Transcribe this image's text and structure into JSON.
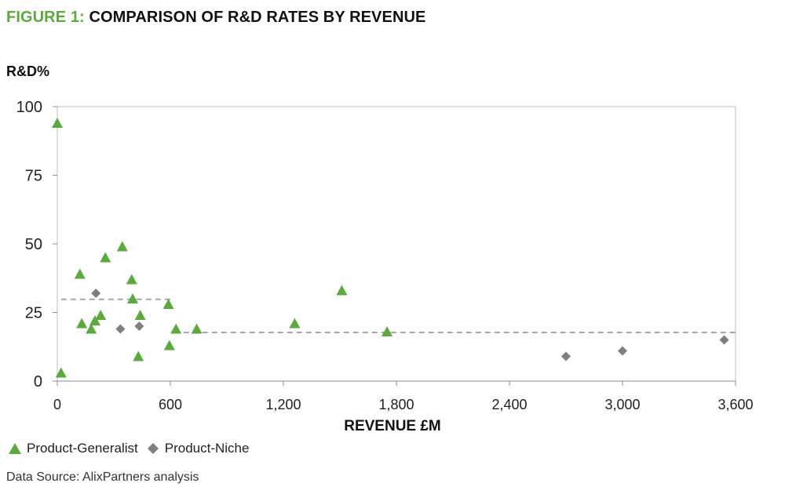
{
  "header": {
    "figure_label": "FIGURE 1:",
    "title": "COMPARISON OF R&D RATES BY REVENUE"
  },
  "footer": {
    "source": "Data Source: AlixPartners analysis"
  },
  "colors": {
    "generalist": "#5aab3c",
    "niche": "#7f7f7f",
    "average_line": "#a6a6a6",
    "axis": "#bfbfbf"
  },
  "chart_data": {
    "type": "scatter",
    "title": "COMPARISON OF R&D RATES BY REVENUE",
    "xlabel": "REVENUE £M",
    "ylabel": "R&D%",
    "xlim": [
      0,
      3600
    ],
    "ylim": [
      0,
      100
    ],
    "x_ticks": [
      0,
      600,
      1200,
      1800,
      2400,
      3000,
      3600
    ],
    "x_tick_labels": [
      "0",
      "600",
      "1,200",
      "1,800",
      "2,400",
      "3,000",
      "3,600"
    ],
    "y_ticks": [
      0,
      25,
      50,
      75,
      100
    ],
    "y_tick_labels": [
      "0",
      "25",
      "50",
      "75",
      "100"
    ],
    "grid": false,
    "legend_position": "bottom-left",
    "series": [
      {
        "name": "Product-Generalist",
        "marker": "triangle",
        "points": [
          {
            "x": 0,
            "y": 94
          },
          {
            "x": 20,
            "y": 3
          },
          {
            "x": 120,
            "y": 39
          },
          {
            "x": 130,
            "y": 21
          },
          {
            "x": 180,
            "y": 19
          },
          {
            "x": 200,
            "y": 22
          },
          {
            "x": 230,
            "y": 24
          },
          {
            "x": 255,
            "y": 45
          },
          {
            "x": 345,
            "y": 49
          },
          {
            "x": 395,
            "y": 37
          },
          {
            "x": 400,
            "y": 30
          },
          {
            "x": 430,
            "y": 9
          },
          {
            "x": 440,
            "y": 24
          },
          {
            "x": 590,
            "y": 28
          },
          {
            "x": 595,
            "y": 13
          },
          {
            "x": 630,
            "y": 19
          },
          {
            "x": 740,
            "y": 19
          },
          {
            "x": 1260,
            "y": 21
          },
          {
            "x": 1510,
            "y": 33
          },
          {
            "x": 1750,
            "y": 18
          }
        ]
      },
      {
        "name": "Product-Niche",
        "marker": "diamond",
        "points": [
          {
            "x": 205,
            "y": 32
          },
          {
            "x": 335,
            "y": 19
          },
          {
            "x": 435,
            "y": 20
          },
          {
            "x": 2700,
            "y": 9
          },
          {
            "x": 3000,
            "y": 11
          },
          {
            "x": 3540,
            "y": 15
          }
        ]
      }
    ],
    "reference_lines": [
      {
        "style": "dashed",
        "x_start": 20,
        "x_end": 620,
        "y": 29.8
      },
      {
        "style": "dashed",
        "x_start": 620,
        "x_end": 3600,
        "y": 17.7
      }
    ]
  }
}
